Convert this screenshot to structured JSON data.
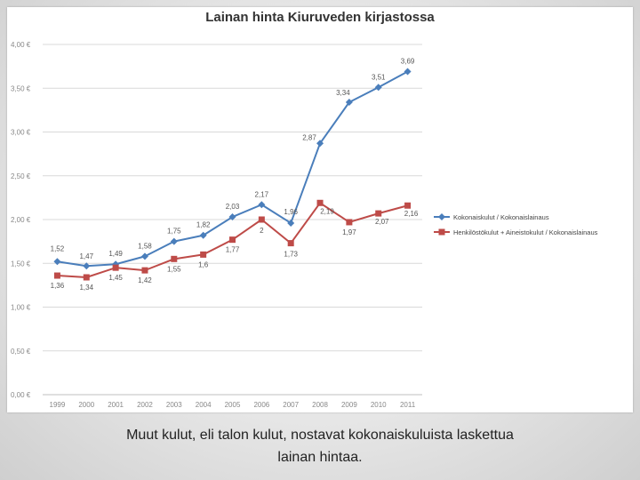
{
  "caption": {
    "line1": "Muut kulut, eli talon kulut,  nostavat kokonaiskuluista laskettua",
    "line2": "lainan hintaa."
  },
  "colors": {
    "series1": "#4a7ebb",
    "series2": "#be4b48",
    "grid": "#d9d9d9",
    "axis_text": "#888888",
    "label_text": "#555555"
  },
  "chart_data": {
    "type": "line",
    "title": "Lainan hinta Kiuruveden kirjastossa",
    "x": [
      "1999",
      "2000",
      "2001",
      "2002",
      "2003",
      "2004",
      "2005",
      "2006",
      "2007",
      "2008",
      "2009",
      "2010",
      "2011"
    ],
    "ylim": [
      0,
      4
    ],
    "yticks": [
      {
        "value": 0.0,
        "label": "0,00 €"
      },
      {
        "value": 0.5,
        "label": "0,50 €"
      },
      {
        "value": 1.0,
        "label": "1,00 €"
      },
      {
        "value": 1.5,
        "label": "1,50 €"
      },
      {
        "value": 2.0,
        "label": "2,00 €"
      },
      {
        "value": 2.5,
        "label": "2,50 €"
      },
      {
        "value": 3.0,
        "label": "3,00 €"
      },
      {
        "value": 3.5,
        "label": "3,50 €"
      },
      {
        "value": 4.0,
        "label": "4,00 €"
      }
    ],
    "grid": true,
    "legend_position": "right",
    "series": [
      {
        "name": "Kokonaiskulut / Kokonaislainaus",
        "marker": "diamond",
        "values": [
          1.52,
          1.47,
          1.49,
          1.58,
          1.75,
          1.82,
          2.03,
          2.17,
          1.96,
          2.87,
          3.34,
          3.51,
          3.69
        ],
        "labels": [
          "1,52",
          "1,47",
          "1,49",
          "1,58",
          "1,75",
          "1,82",
          "2,03",
          "2,17",
          "1,96",
          "2,87",
          "3,34",
          "3,51",
          "3,69"
        ]
      },
      {
        "name": "Henkilöstökulut + Aineistokulut / Kokonaislainaus",
        "marker": "square",
        "values": [
          1.36,
          1.34,
          1.45,
          1.42,
          1.55,
          1.6,
          1.77,
          2.0,
          1.73,
          2.19,
          1.97,
          2.07,
          2.16
        ],
        "labels": [
          "1,36",
          "1,34",
          "1,45",
          "1,42",
          "1,55",
          "1,6",
          "1,77",
          "2",
          "1,73",
          "2,19",
          "1,97",
          "2,07",
          "2,16"
        ]
      }
    ]
  }
}
